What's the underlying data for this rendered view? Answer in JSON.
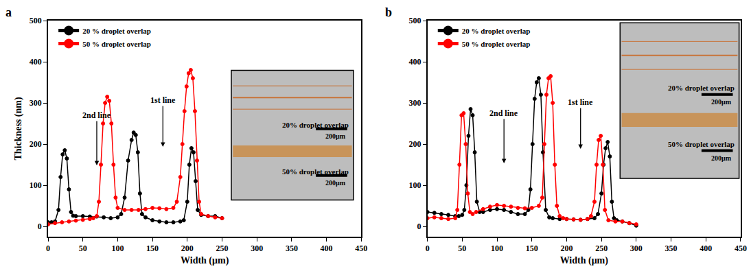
{
  "chart_data": [
    {
      "type": "line",
      "panel": "a",
      "x_label": "Width (μm)",
      "y_label": "Thickness (nm)",
      "xlim": [
        0,
        450
      ],
      "xticks": [
        0,
        50,
        100,
        150,
        200,
        250,
        300,
        350,
        400,
        450
      ],
      "ylim": [
        -25,
        500
      ],
      "yticks": [
        0,
        100,
        200,
        300,
        400,
        500
      ],
      "legend": "upper left",
      "annotations": [
        "1st line",
        "2nd line"
      ],
      "inset": {
        "labels": [
          "20% droplet overlap",
          "50% droplet overlap"
        ],
        "scale_bar": "200μm"
      },
      "series": [
        {
          "name": "20 % droplet overlap",
          "color": "#000000",
          "marker": "circle",
          "line_style": "solid",
          "x": [
            0,
            5,
            10,
            15,
            18,
            21,
            24,
            27,
            30,
            33,
            36,
            40,
            50,
            60,
            70,
            80,
            90,
            100,
            105,
            110,
            115,
            120,
            123,
            126,
            129,
            132,
            135,
            140,
            150,
            160,
            170,
            180,
            190,
            195,
            200,
            203,
            206,
            209,
            212,
            215,
            220,
            230,
            240,
            250
          ],
          "values": [
            10,
            10,
            12,
            40,
            120,
            175,
            185,
            165,
            90,
            35,
            26,
            25,
            25,
            24,
            24,
            22,
            20,
            22,
            30,
            70,
            160,
            210,
            228,
            222,
            180,
            80,
            30,
            22,
            15,
            12,
            10,
            10,
            12,
            15,
            60,
            150,
            190,
            180,
            110,
            40,
            28,
            25,
            25,
            20
          ]
        },
        {
          "name": "50 % droplet overlap",
          "color": "#ff0000",
          "marker": "circle",
          "line_style": "solid",
          "x": [
            0,
            10,
            20,
            30,
            40,
            50,
            60,
            65,
            70,
            73,
            76,
            79,
            82,
            85,
            88,
            91,
            94,
            97,
            100,
            110,
            120,
            130,
            140,
            150,
            160,
            170,
            180,
            185,
            190,
            193,
            196,
            199,
            202,
            205,
            208,
            211,
            214,
            217,
            220,
            230,
            240,
            250
          ],
          "values": [
            5,
            8,
            10,
            12,
            14,
            16,
            18,
            20,
            25,
            60,
            150,
            250,
            300,
            315,
            305,
            250,
            150,
            70,
            45,
            40,
            40,
            40,
            42,
            45,
            44,
            42,
            45,
            60,
            120,
            200,
            280,
            340,
            372,
            380,
            360,
            280,
            160,
            60,
            30,
            25,
            22,
            20
          ]
        }
      ]
    },
    {
      "type": "line",
      "panel": "b",
      "x_label": "Width (μm)",
      "xlim": [
        0,
        450
      ],
      "xticks": [
        0,
        50,
        100,
        150,
        200,
        250,
        300,
        350,
        400,
        450
      ],
      "ylim": [
        -25,
        500
      ],
      "yticks": [
        0,
        100,
        200,
        300,
        400,
        500
      ],
      "legend": "upper left",
      "annotations": [
        "2nd line",
        "1st line"
      ],
      "inset": {
        "labels": [
          "20% droplet overlap",
          "50% droplet overlap"
        ],
        "scale_bar": "200μm"
      },
      "series": [
        {
          "name": "20 % droplet overlap",
          "color": "#000000",
          "marker": "circle",
          "line_style": "solid",
          "x": [
            0,
            10,
            20,
            30,
            40,
            45,
            50,
            53,
            56,
            59,
            62,
            65,
            68,
            71,
            75,
            80,
            90,
            100,
            110,
            120,
            130,
            140,
            145,
            148,
            151,
            154,
            157,
            160,
            163,
            166,
            170,
            175,
            180,
            190,
            200,
            210,
            220,
            230,
            240,
            245,
            250,
            253,
            256,
            259,
            262,
            265,
            268,
            272,
            280,
            290,
            300
          ],
          "values": [
            35,
            33,
            30,
            28,
            25,
            25,
            28,
            40,
            100,
            220,
            285,
            270,
            180,
            60,
            35,
            35,
            40,
            42,
            40,
            35,
            30,
            30,
            40,
            90,
            200,
            310,
            350,
            360,
            320,
            180,
            40,
            22,
            20,
            18,
            18,
            17,
            16,
            18,
            20,
            30,
            80,
            150,
            190,
            205,
            170,
            60,
            20,
            15,
            12,
            8,
            2
          ]
        },
        {
          "name": "50 % droplet overlap",
          "color": "#ff0000",
          "marker": "circle",
          "line_style": "solid",
          "x": [
            0,
            10,
            20,
            30,
            40,
            43,
            46,
            49,
            52,
            55,
            58,
            61,
            65,
            70,
            80,
            90,
            100,
            110,
            120,
            130,
            140,
            150,
            160,
            165,
            168,
            171,
            174,
            177,
            180,
            183,
            186,
            190,
            195,
            200,
            210,
            220,
            230,
            235,
            240,
            243,
            246,
            249,
            252,
            255,
            260,
            270,
            280,
            290,
            300
          ],
          "values": [
            20,
            22,
            20,
            18,
            20,
            40,
            150,
            270,
            275,
            200,
            80,
            35,
            30,
            35,
            42,
            48,
            52,
            50,
            48,
            45,
            44,
            45,
            50,
            70,
            200,
            320,
            360,
            365,
            300,
            150,
            50,
            25,
            20,
            18,
            17,
            16,
            18,
            25,
            60,
            150,
            210,
            220,
            150,
            40,
            15,
            12,
            12,
            8,
            5
          ]
        }
      ]
    }
  ]
}
